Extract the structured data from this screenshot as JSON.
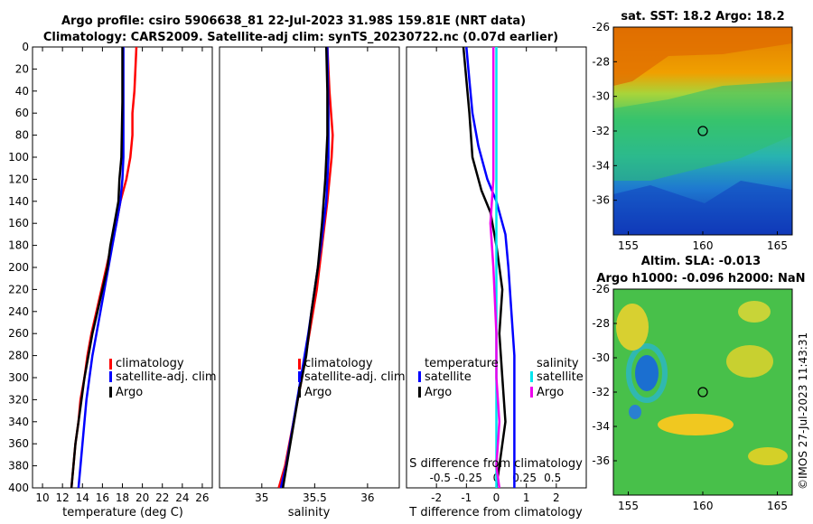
{
  "header": {
    "line1": "Argo profile: csiro 5906638_81 22-Jul-2023 31.98S 159.81E (NRT data)",
    "line2": "Climatology: CARS2009. Satellite-adj clim: synTS_20230722.nc (0.07d earlier)"
  },
  "colors": {
    "climatology": "#ff0000",
    "satellite": "#0000ff",
    "argo": "#000000",
    "salinity_satellite": "#00e5ee",
    "salinity_argo": "#ee00ee"
  },
  "chart_data": [
    {
      "id": "temperature-profile",
      "type": "line",
      "xlabel": "temperature (deg C)",
      "ylabel": "",
      "xlim": [
        9,
        27
      ],
      "ylim": [
        400,
        0
      ],
      "xticks": [
        10,
        12,
        14,
        16,
        18,
        20,
        22,
        24,
        26
      ],
      "yticks": [
        0,
        20,
        40,
        60,
        80,
        100,
        120,
        140,
        160,
        180,
        200,
        220,
        240,
        260,
        280,
        300,
        320,
        340,
        360,
        380,
        400
      ],
      "legend": [
        "climatology",
        "satellite-adj. clim",
        "Argo"
      ],
      "series": [
        {
          "name": "climatology",
          "color": "climatology",
          "points": [
            [
              19.4,
              0
            ],
            [
              19.3,
              20
            ],
            [
              19.2,
              40
            ],
            [
              19.0,
              60
            ],
            [
              19.0,
              80
            ],
            [
              18.8,
              100
            ],
            [
              18.4,
              120
            ],
            [
              17.8,
              140
            ],
            [
              17.4,
              160
            ],
            [
              16.9,
              180
            ],
            [
              16.4,
              200
            ],
            [
              15.9,
              220
            ],
            [
              15.4,
              240
            ],
            [
              14.9,
              260
            ],
            [
              14.5,
              280
            ],
            [
              14.2,
              300
            ],
            [
              13.8,
              320
            ],
            [
              13.6,
              340
            ],
            [
              13.3,
              360
            ],
            [
              13.1,
              380
            ],
            [
              12.9,
              400
            ]
          ]
        },
        {
          "name": "satellite-adj. clim",
          "color": "satellite",
          "points": [
            [
              18.1,
              0
            ],
            [
              18.1,
              50
            ],
            [
              18.1,
              100
            ],
            [
              18.0,
              120
            ],
            [
              17.8,
              140
            ],
            [
              17.4,
              160
            ],
            [
              17.0,
              180
            ],
            [
              16.6,
              200
            ],
            [
              16.2,
              220
            ],
            [
              15.8,
              240
            ],
            [
              15.4,
              260
            ],
            [
              15.0,
              280
            ],
            [
              14.7,
              300
            ],
            [
              14.4,
              320
            ],
            [
              14.2,
              340
            ],
            [
              14.0,
              360
            ],
            [
              13.8,
              380
            ],
            [
              13.6,
              400
            ]
          ]
        },
        {
          "name": "Argo",
          "color": "argo",
          "points": [
            [
              18.0,
              0
            ],
            [
              18.0,
              50
            ],
            [
              17.9,
              100
            ],
            [
              17.7,
              120
            ],
            [
              17.6,
              140
            ],
            [
              17.2,
              160
            ],
            [
              16.8,
              180
            ],
            [
              16.5,
              200
            ],
            [
              16.0,
              220
            ],
            [
              15.5,
              240
            ],
            [
              15.0,
              260
            ],
            [
              14.6,
              280
            ],
            [
              14.2,
              300
            ],
            [
              13.9,
              320
            ],
            [
              13.6,
              340
            ],
            [
              13.3,
              360
            ],
            [
              13.1,
              380
            ],
            [
              12.9,
              400
            ]
          ]
        }
      ]
    },
    {
      "id": "salinity-profile",
      "type": "line",
      "xlabel": "salinity",
      "xlim": [
        34.6,
        36.3
      ],
      "ylim": [
        400,
        0
      ],
      "xticks": [
        35,
        35.5,
        36
      ],
      "xtick_labels": [
        "35",
        "35.5",
        "36"
      ],
      "legend": [
        "climatology",
        "satellite-adj. clim",
        "Argo"
      ],
      "series": [
        {
          "name": "climatology",
          "color": "climatology",
          "points": [
            [
              35.62,
              0
            ],
            [
              35.64,
              40
            ],
            [
              35.67,
              80
            ],
            [
              35.66,
              100
            ],
            [
              35.62,
              140
            ],
            [
              35.57,
              180
            ],
            [
              35.52,
              220
            ],
            [
              35.45,
              260
            ],
            [
              35.38,
              300
            ],
            [
              35.3,
              340
            ],
            [
              35.22,
              380
            ],
            [
              35.16,
              400
            ]
          ]
        },
        {
          "name": "satellite-adj. clim",
          "color": "satellite",
          "points": [
            [
              35.62,
              0
            ],
            [
              35.63,
              60
            ],
            [
              35.63,
              100
            ],
            [
              35.61,
              140
            ],
            [
              35.56,
              180
            ],
            [
              35.5,
              220
            ],
            [
              35.44,
              260
            ],
            [
              35.37,
              300
            ],
            [
              35.3,
              340
            ],
            [
              35.23,
              380
            ],
            [
              35.18,
              400
            ]
          ]
        },
        {
          "name": "Argo",
          "color": "argo",
          "points": [
            [
              35.61,
              0
            ],
            [
              35.62,
              40
            ],
            [
              35.62,
              80
            ],
            [
              35.6,
              120
            ],
            [
              35.57,
              160
            ],
            [
              35.53,
              200
            ],
            [
              35.47,
              240
            ],
            [
              35.42,
              280
            ],
            [
              35.34,
              320
            ],
            [
              35.27,
              360
            ],
            [
              35.2,
              400
            ]
          ]
        }
      ]
    },
    {
      "id": "difference-profile",
      "type": "line",
      "xlabel": "T difference from climatology",
      "top_label": "S difference from climatology",
      "xlim": [
        -3,
        3
      ],
      "ylim": [
        400,
        0
      ],
      "xticks": [
        -2,
        -1,
        0,
        1,
        2
      ],
      "s_xticks": [
        -0.5,
        -0.25,
        0,
        0.25,
        0.5
      ],
      "s_xtick_labels": [
        "-0.5",
        "-0.25",
        "0",
        "0.25",
        "0.5"
      ],
      "legend_temperature_title": "temperature",
      "legend_salinity_title": "salinity",
      "legend_labels": [
        "satellite",
        "Argo",
        "satellite",
        "Argo"
      ],
      "series": [
        {
          "name": "temperature satellite",
          "color": "satellite",
          "points": [
            [
              -1.0,
              0
            ],
            [
              -0.9,
              30
            ],
            [
              -0.8,
              60
            ],
            [
              -0.6,
              90
            ],
            [
              -0.3,
              120
            ],
            [
              0.0,
              140
            ],
            [
              0.3,
              170
            ],
            [
              0.4,
              200
            ],
            [
              0.5,
              240
            ],
            [
              0.6,
              280
            ],
            [
              0.6,
              320
            ],
            [
              0.6,
              360
            ],
            [
              0.6,
              400
            ]
          ]
        },
        {
          "name": "temperature Argo",
          "color": "argo",
          "points": [
            [
              -1.1,
              0
            ],
            [
              -1.0,
              30
            ],
            [
              -0.9,
              60
            ],
            [
              -0.8,
              100
            ],
            [
              -0.5,
              130
            ],
            [
              -0.2,
              150
            ],
            [
              0.0,
              180
            ],
            [
              0.2,
              220
            ],
            [
              0.1,
              260
            ],
            [
              0.2,
              300
            ],
            [
              0.3,
              340
            ],
            [
              0.1,
              380
            ],
            [
              0.0,
              400
            ]
          ]
        },
        {
          "name": "salinity satellite",
          "color": "salinity_satellite",
          "points": [
            [
              0.0,
              0
            ],
            [
              0.0,
              100
            ],
            [
              0.0,
              200
            ],
            [
              0.0,
              300
            ],
            [
              0.0,
              400
            ]
          ]
        },
        {
          "name": "salinity Argo",
          "color": "salinity_argo",
          "points": [
            [
              -0.1,
              0
            ],
            [
              -0.1,
              60
            ],
            [
              -0.1,
              120
            ],
            [
              -0.2,
              160
            ],
            [
              -0.1,
              200
            ],
            [
              0.0,
              260
            ],
            [
              0.0,
              300
            ],
            [
              0.1,
              340
            ],
            [
              0.0,
              380
            ],
            [
              0.1,
              400
            ]
          ]
        }
      ]
    }
  ],
  "maps": [
    {
      "id": "sst-map",
      "title": "sat. SST: 18.2 Argo: 18.2",
      "xticks": [
        155,
        160,
        165
      ],
      "yticks": [
        -26,
        -28,
        -30,
        -32,
        -34,
        -36
      ],
      "xlim": [
        154,
        166
      ],
      "ylim": [
        -38,
        -26
      ],
      "marker": [
        159.81,
        -31.98
      ]
    },
    {
      "id": "sla-map",
      "title_line1": "Altim. SLA: -0.013",
      "title_line2": "Argo h1000: -0.096 h2000: NaN",
      "xticks": [
        155,
        160,
        165
      ],
      "yticks": [
        -26,
        -28,
        -30,
        -32,
        -34,
        -36
      ],
      "xlim": [
        154,
        166
      ],
      "ylim": [
        -38,
        -26
      ],
      "marker": [
        159.81,
        -31.98
      ]
    }
  ],
  "footer": {
    "credit": "©IMOS 27-Jul-2023 11:43:31"
  }
}
